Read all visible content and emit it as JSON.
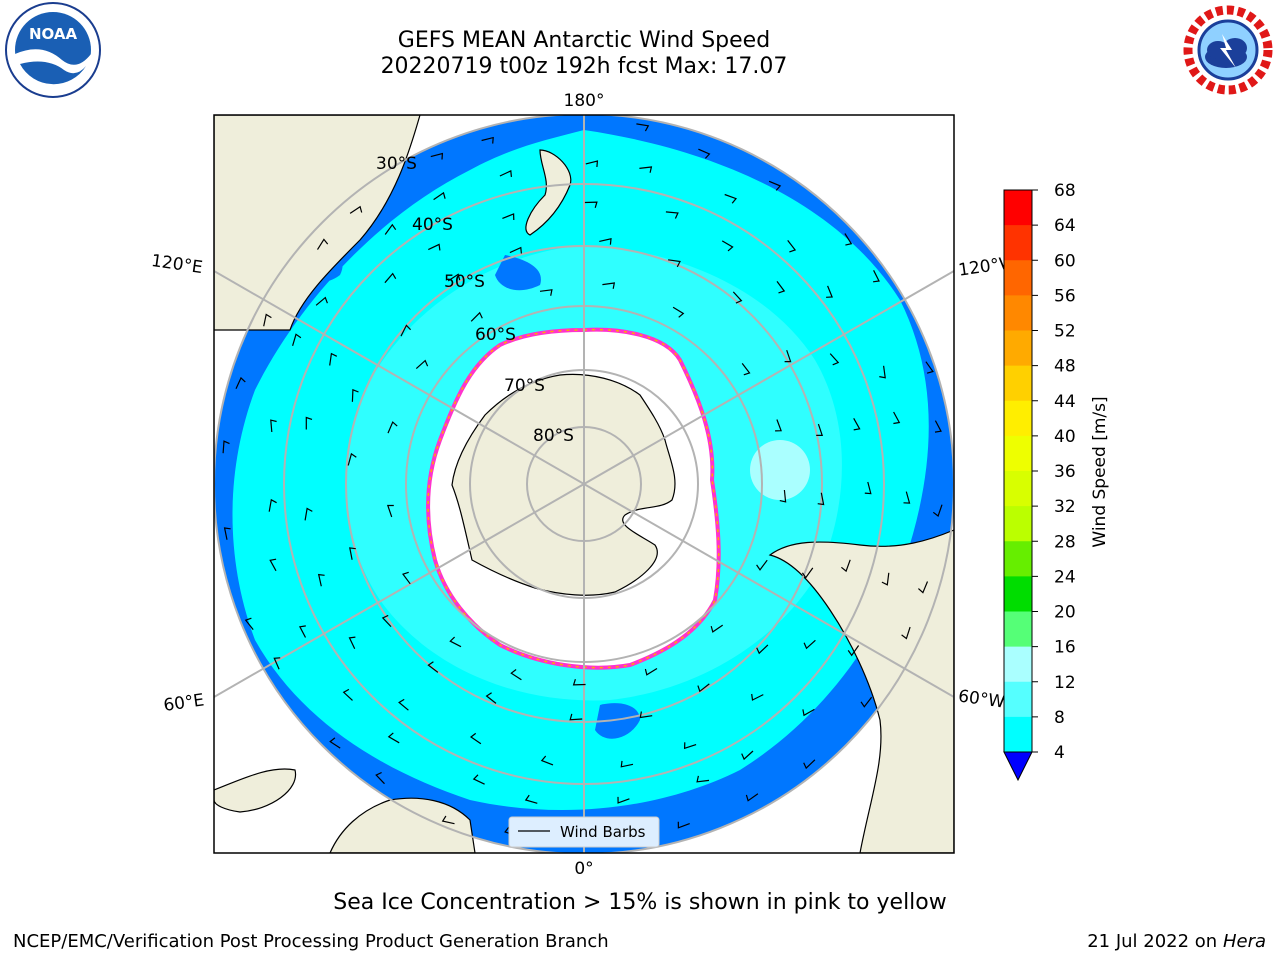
{
  "title_line1": "GEFS MEAN Antarctic Wind Speed",
  "title_line2": "20220719 t00z 192h fcst   Max: 17.07",
  "lon_labels": {
    "top": "180°",
    "bottom": "0°",
    "upper_left": "120°E",
    "upper_right": "120°W",
    "lower_left": "60°E",
    "lower_right": "60°W"
  },
  "lat_labels": [
    "30°S",
    "40°S",
    "50°S",
    "60°S",
    "70°S",
    "80°S"
  ],
  "legend_label": "Wind Barbs",
  "colorbar": {
    "label": "Wind Speed [m/s]",
    "ticks": [
      "68",
      "64",
      "60",
      "56",
      "52",
      "48",
      "44",
      "40",
      "36",
      "32",
      "28",
      "24",
      "20",
      "16",
      "12",
      "8",
      "4"
    ],
    "colors": [
      "#ff0000",
      "#ff3300",
      "#ff6600",
      "#ff8800",
      "#ffaa00",
      "#ffd000",
      "#ffee00",
      "#eeff00",
      "#d8ff00",
      "#bbff00",
      "#66ee00",
      "#00dd00",
      "#55ff77",
      "#aaffff",
      "#55ffff",
      "#00ffff",
      "#0077ff"
    ],
    "extend_color": "#0000ff"
  },
  "caption": "Sea Ice Concentration > 15% is shown in pink to yellow",
  "footer_left": "NCEP/EMC/Verification Post Processing Product Generation Branch",
  "footer_right_date": "21 Jul 2022 on ",
  "footer_right_host": "Hera",
  "logos": {
    "left": "NOAA",
    "right": "NATIONAL WEATHER SERVICE"
  },
  "colors": {
    "land": "#efeedb",
    "ocean_dark": "#0077ff",
    "ocean_mid": "#00ffff",
    "ocean_light": "#55ffff",
    "ice_edge": "#ff33cc",
    "grid": "#b3b3b3"
  }
}
